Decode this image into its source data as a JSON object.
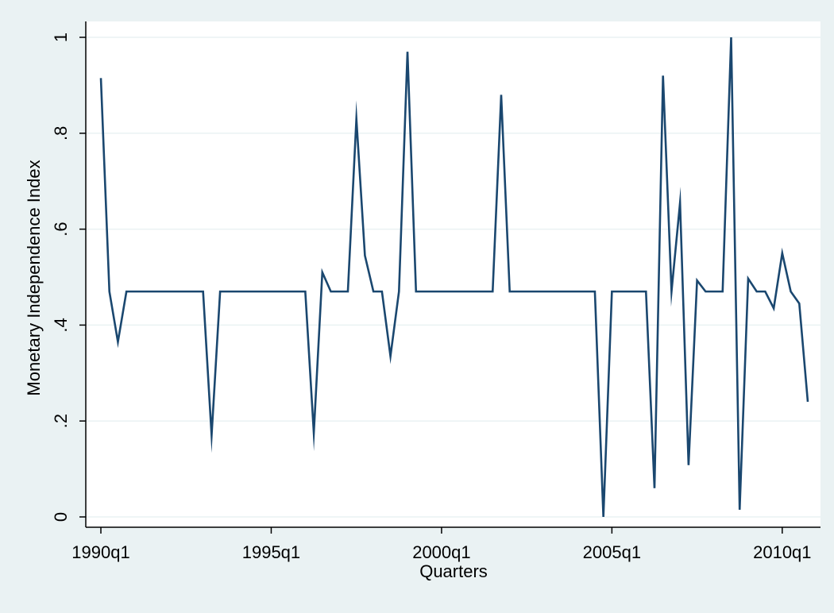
{
  "chart_data": {
    "type": "line",
    "xlabel": "Quarters",
    "ylabel": "Monetary Independence Index",
    "x_tick_labels": [
      "1990q1",
      "1995q1",
      "2000q1",
      "2005q1",
      "2010q1"
    ],
    "y_tick_labels": [
      "0",
      ".2",
      ".4",
      ".6",
      ".8",
      "1"
    ],
    "y_ticks": [
      0,
      0.2,
      0.4,
      0.6,
      0.8,
      1
    ],
    "ylim": [
      0,
      1
    ],
    "x_start": "1990q1",
    "x_end": "2010q4",
    "grid": true,
    "series": [
      {
        "values": [
          0.915,
          0.47,
          0.365,
          0.47,
          0.47,
          0.47,
          0.47,
          0.47,
          0.47,
          0.47,
          0.47,
          0.47,
          0.47,
          0.17,
          0.47,
          0.47,
          0.47,
          0.47,
          0.47,
          0.47,
          0.47,
          0.47,
          0.47,
          0.47,
          0.47,
          0.175,
          0.51,
          0.47,
          0.47,
          0.47,
          0.83,
          0.545,
          0.47,
          0.47,
          0.335,
          0.47,
          0.97,
          0.47,
          0.47,
          0.47,
          0.47,
          0.47,
          0.47,
          0.47,
          0.47,
          0.47,
          0.47,
          0.88,
          0.47,
          0.47,
          0.47,
          0.47,
          0.47,
          0.47,
          0.47,
          0.47,
          0.47,
          0.47,
          0.47,
          0.0,
          0.47,
          0.47,
          0.47,
          0.47,
          0.47,
          0.06,
          0.92,
          0.47,
          0.655,
          0.108,
          0.493,
          0.47,
          0.47,
          0.47,
          1.0,
          0.015,
          0.497,
          0.47,
          0.47,
          0.435,
          0.55,
          0.47,
          0.445,
          0.24
        ]
      }
    ]
  },
  "colors": {
    "background": "#eaf2f3",
    "plot_area": "#ffffff",
    "line": "#1a476f",
    "grid": "#eaf2f3"
  }
}
